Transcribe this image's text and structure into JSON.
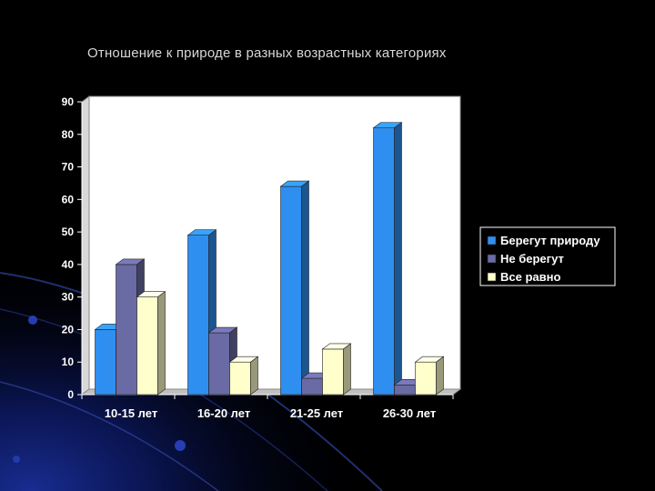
{
  "chart_data": {
    "type": "bar",
    "title": "Отношение к природе в разных возрастных категориях",
    "categories": [
      "10-15 лет",
      "16-20 лет",
      "21-25 лет",
      "26-30 лет"
    ],
    "series": [
      {
        "name": "Берегут природу",
        "values": [
          20,
          49,
          64,
          82
        ],
        "color": "#2f8ff0"
      },
      {
        "name": "Не берегут",
        "values": [
          40,
          19,
          5,
          3
        ],
        "color": "#6a6aa4"
      },
      {
        "name": "Все равно",
        "values": [
          30,
          10,
          14,
          10
        ],
        "color": "#ffffcc"
      }
    ],
    "ylim": [
      0,
      90
    ],
    "yticks": [
      0,
      10,
      20,
      30,
      40,
      50,
      60,
      70,
      80,
      90
    ],
    "xlabel": "",
    "ylabel": "",
    "grid": false,
    "style": "3d-bar",
    "legend": "right"
  },
  "colors": {
    "background": "#000000",
    "text": "#d8d8d8"
  }
}
